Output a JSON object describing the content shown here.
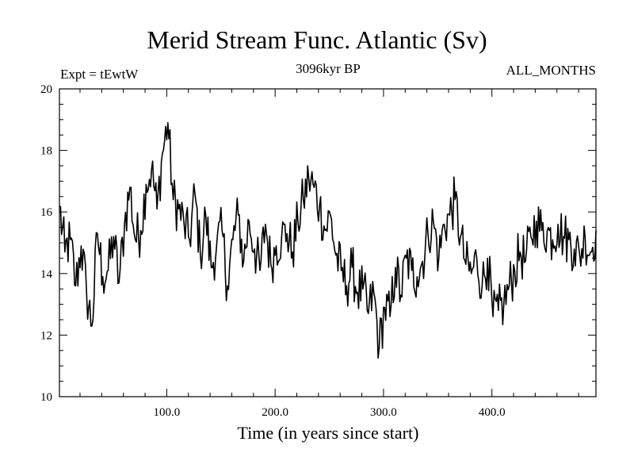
{
  "chart_data": {
    "type": "line",
    "title": "Merid Stream Func. Atlantic (Sv)",
    "subtitle": "3096kyr BP",
    "expt_label": "Expt = tEwtW",
    "period_label": "ALL_MONTHS",
    "xlabel": "Time (in years since start)",
    "ylabel": "",
    "xlim": [
      1,
      496
    ],
    "ylim": [
      10,
      20
    ],
    "x_ticks": [
      100,
      200,
      300,
      400
    ],
    "x_tick_labels": [
      "100.0",
      "200.0",
      "300.0",
      "400.0"
    ],
    "y_ticks": [
      10,
      12,
      14,
      16,
      18,
      20
    ],
    "y_tick_labels": [
      "10",
      "12",
      "14",
      "16",
      "18",
      "20"
    ],
    "series": [
      {
        "name": "Merid Stream Func. Atlantic",
        "x_start": 1,
        "x_step": 5,
        "values": [
          16.2,
          14.7,
          15.1,
          13.6,
          14.9,
          13.4,
          12.3,
          15.3,
          13.9,
          14.1,
          15.2,
          13.7,
          15.6,
          16.8,
          15.1,
          15.4,
          16.9,
          17.4,
          16.1,
          17.9,
          18.9,
          16.4,
          16.1,
          15.6,
          15.1,
          16.6,
          14.6,
          15.9,
          14.2,
          14.9,
          15.4,
          13.6,
          15.1,
          15.9,
          14.4,
          15.7,
          14.8,
          14.1,
          15.6,
          14.3,
          14.9,
          15.2,
          15.3,
          14.7,
          15.7,
          16.4,
          17.1,
          16.8,
          16.2,
          15.4,
          15.9,
          14.6,
          14.1,
          13.6,
          14.2,
          13.4,
          13.5,
          12.7,
          13.4,
          11.6,
          12.9,
          12.6,
          14.2,
          13.3,
          14.5,
          14.1,
          13.9,
          14.4,
          15.3,
          15.7,
          14.5,
          15.6,
          15.9,
          16.4,
          15.2,
          14.3,
          14.0,
          14.5,
          13.6,
          14.5,
          12.6,
          12.8,
          13.0,
          13.6,
          14.1,
          14.7,
          14.4,
          15.2,
          15.7,
          15.4,
          15.4,
          15.1,
          15.6,
          15.2,
          15.1,
          14.8,
          14.6,
          15.2,
          14.7,
          15.4
        ]
      }
    ]
  }
}
